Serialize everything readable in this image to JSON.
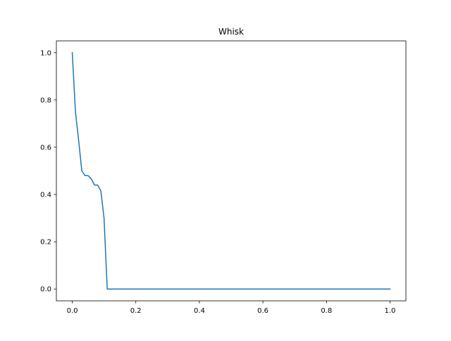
{
  "chart_data": {
    "type": "line",
    "title": "Whisk",
    "xlabel": "",
    "ylabel": "",
    "xlim": [
      -0.05,
      1.05
    ],
    "ylim": [
      -0.05,
      1.05
    ],
    "xticks": [
      "0.0",
      "0.2",
      "0.4",
      "0.6",
      "0.8",
      "1.0"
    ],
    "yticks": [
      "0.0",
      "0.2",
      "0.4",
      "0.6",
      "0.8",
      "1.0"
    ],
    "grid": false,
    "series": [
      {
        "color": "#1f77b4",
        "x": [
          0.0,
          0.01,
          0.02,
          0.03,
          0.04,
          0.05,
          0.06,
          0.07,
          0.08,
          0.09,
          0.1,
          0.11,
          0.12,
          0.2,
          0.4,
          0.6,
          0.8,
          1.0
        ],
        "y": [
          1.0,
          0.75,
          0.63,
          0.5,
          0.48,
          0.48,
          0.465,
          0.44,
          0.44,
          0.415,
          0.3,
          0.0,
          0.0,
          0.0,
          0.0,
          0.0,
          0.0,
          0.0
        ]
      }
    ]
  }
}
